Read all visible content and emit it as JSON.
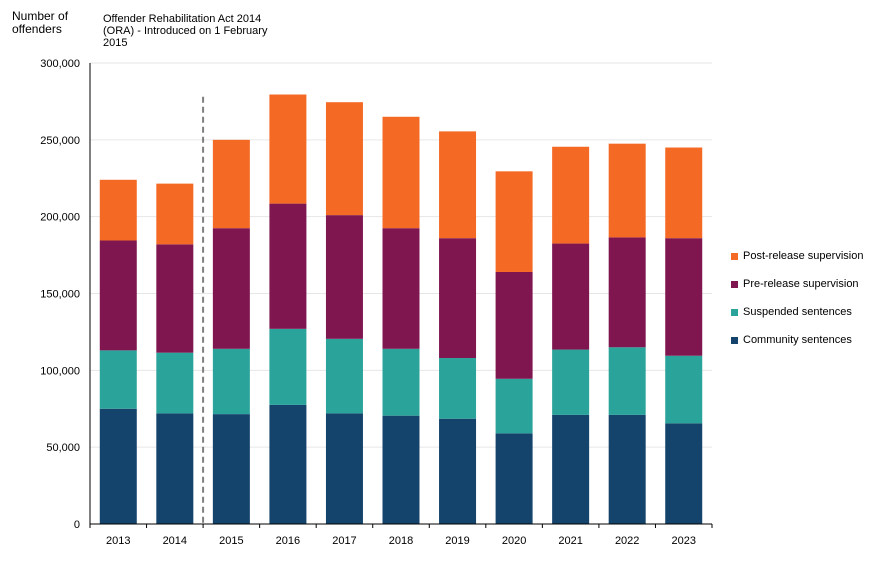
{
  "chart_data": {
    "type": "bar",
    "stacked": true,
    "ylabel": "Number of\noffenders",
    "annotation": "Offender Rehabilitation Act 2014\n(ORA) - Introduced on 1 February\n2015",
    "categories": [
      "2013",
      "2014",
      "2015",
      "2016",
      "2017",
      "2018",
      "2019",
      "2020",
      "2021",
      "2022",
      "2023"
    ],
    "ylim": [
      0,
      300000
    ],
    "yticks": [
      0,
      50000,
      100000,
      150000,
      200000,
      250000,
      300000
    ],
    "ytick_labels": [
      "0",
      "50,000",
      "100,000",
      "150,000",
      "200,000",
      "250,000",
      "300,000"
    ],
    "grid": true,
    "legend_position": "right",
    "series": [
      {
        "name": "Community sentences",
        "color": "#14436b",
        "values": [
          75000,
          72000,
          71500,
          77500,
          72000,
          70500,
          68500,
          59000,
          71000,
          71000,
          65500
        ]
      },
      {
        "name": "Suspended sentences",
        "color": "#2aa39a",
        "values": [
          38000,
          39500,
          42500,
          49500,
          48500,
          43500,
          39500,
          35500,
          42500,
          44000,
          44000
        ]
      },
      {
        "name": "Pre-release supervision",
        "color": "#801650",
        "values": [
          71500,
          70500,
          78500,
          81500,
          80500,
          78500,
          78000,
          69500,
          69000,
          71500,
          76500
        ]
      },
      {
        "name": "Post-release supervision",
        "color": "#f46a25",
        "values": [
          39500,
          39500,
          57500,
          71000,
          73500,
          72500,
          69500,
          65500,
          63000,
          61000,
          59000
        ]
      }
    ],
    "legend_order": [
      3,
      2,
      1,
      0
    ],
    "marker_between": [
      "2014",
      "2015"
    ]
  }
}
